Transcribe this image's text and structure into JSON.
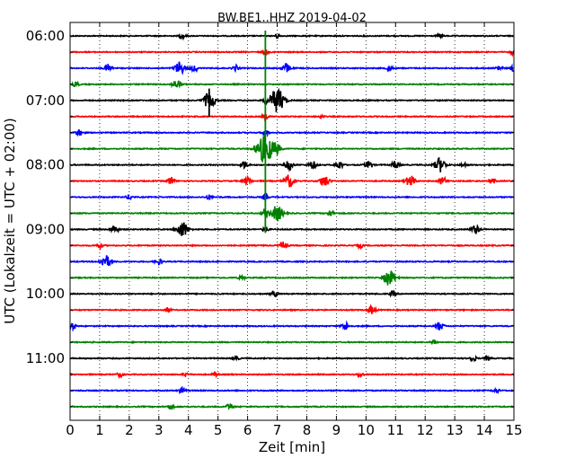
{
  "chart_data": {
    "type": "line",
    "title": "BW.BE1..HHZ 2019-04-02",
    "xlabel": "Zeit  [min]",
    "ylabel": "UTC (Lokalzeit = UTC + 02:00)",
    "xlim": [
      0,
      15
    ],
    "x_ticks": [
      0,
      1,
      2,
      3,
      4,
      5,
      6,
      7,
      8,
      9,
      10,
      11,
      12,
      13,
      14,
      15
    ],
    "grid": "vertical dotted",
    "row_interval_min": 15,
    "colors": [
      "#000000",
      "#ff0000",
      "#0000ff",
      "#008000"
    ],
    "y_ticks": [
      "06:00",
      "07:00",
      "08:00",
      "09:00",
      "10:00",
      "11:00"
    ],
    "rows": [
      {
        "time": "06:00",
        "bursts": [
          [
            3.8,
            0.3
          ],
          [
            7.0,
            0.25
          ],
          [
            12.5,
            0.25
          ]
        ]
      },
      {
        "time": "06:15",
        "bursts": [
          [
            6.6,
            0.3
          ],
          [
            15.0,
            0.4
          ]
        ]
      },
      {
        "time": "06:30",
        "bursts": [
          [
            1.3,
            0.5
          ],
          [
            3.7,
            0.8
          ],
          [
            4.2,
            0.4
          ],
          [
            5.6,
            0.35
          ],
          [
            7.3,
            0.6
          ],
          [
            10.8,
            0.3
          ],
          [
            14.5,
            0.35
          ],
          [
            15.0,
            0.4
          ]
        ]
      },
      {
        "time": "06:45",
        "bursts": [
          [
            0.2,
            0.3
          ],
          [
            3.6,
            0.6
          ]
        ]
      },
      {
        "time": "07:00",
        "bursts": [
          [
            4.7,
            1.0
          ],
          [
            6.6,
            0.3
          ],
          [
            7.0,
            1.5
          ]
        ]
      },
      {
        "time": "07:15",
        "bursts": [
          [
            6.6,
            0.3
          ],
          [
            8.5,
            0.2
          ]
        ]
      },
      {
        "time": "07:30",
        "bursts": [
          [
            0.3,
            0.4
          ],
          [
            6.6,
            0.35
          ]
        ]
      },
      {
        "time": "07:45",
        "bursts": [
          [
            6.6,
            1.8
          ],
          [
            7.0,
            0.5
          ]
        ]
      },
      {
        "time": "08:00",
        "bursts": [
          [
            5.9,
            0.45
          ],
          [
            7.4,
            0.6
          ],
          [
            8.2,
            0.5
          ],
          [
            9.1,
            0.5
          ],
          [
            10.1,
            0.5
          ],
          [
            11.0,
            0.5
          ],
          [
            12.5,
            0.9
          ],
          [
            13.3,
            0.3
          ]
        ]
      },
      {
        "time": "08:15",
        "bursts": [
          [
            3.4,
            0.5
          ],
          [
            6.0,
            0.5
          ],
          [
            7.4,
            0.8
          ],
          [
            8.6,
            0.7
          ],
          [
            11.5,
            0.7
          ],
          [
            12.6,
            0.5
          ],
          [
            14.3,
            0.3
          ]
        ]
      },
      {
        "time": "08:30",
        "bursts": [
          [
            2.0,
            0.3
          ],
          [
            4.7,
            0.3
          ],
          [
            6.6,
            0.3
          ]
        ]
      },
      {
        "time": "08:45",
        "bursts": [
          [
            6.6,
            0.5
          ],
          [
            7.0,
            1.0
          ],
          [
            8.8,
            0.4
          ]
        ]
      },
      {
        "time": "09:00",
        "bursts": [
          [
            1.5,
            0.5
          ],
          [
            3.8,
            1.0
          ],
          [
            6.6,
            0.3
          ],
          [
            13.7,
            0.6
          ]
        ]
      },
      {
        "time": "09:15",
        "bursts": [
          [
            1.0,
            0.3
          ],
          [
            7.2,
            0.5
          ],
          [
            9.8,
            0.3
          ]
        ]
      },
      {
        "time": "09:30",
        "bursts": [
          [
            1.2,
            0.8
          ],
          [
            3.0,
            0.4
          ]
        ]
      },
      {
        "time": "09:45",
        "bursts": [
          [
            5.8,
            0.3
          ],
          [
            10.8,
            1.0
          ]
        ]
      },
      {
        "time": "10:00",
        "bursts": [
          [
            6.9,
            0.35
          ],
          [
            10.9,
            0.3
          ]
        ]
      },
      {
        "time": "10:15",
        "bursts": [
          [
            3.3,
            0.3
          ],
          [
            10.2,
            0.5
          ]
        ]
      },
      {
        "time": "10:30",
        "bursts": [
          [
            0.1,
            0.4
          ],
          [
            9.3,
            0.5
          ],
          [
            12.5,
            0.5
          ]
        ]
      },
      {
        "time": "10:45",
        "bursts": [
          [
            12.3,
            0.3
          ]
        ]
      },
      {
        "time": "11:00",
        "bursts": [
          [
            5.6,
            0.3
          ],
          [
            13.6,
            0.4
          ],
          [
            14.1,
            0.25
          ]
        ]
      },
      {
        "time": "11:15",
        "bursts": [
          [
            1.7,
            0.3
          ],
          [
            3.9,
            0.25
          ],
          [
            4.9,
            0.25
          ],
          [
            9.8,
            0.3
          ]
        ]
      },
      {
        "time": "11:30",
        "bursts": [
          [
            3.8,
            0.35
          ],
          [
            14.4,
            0.3
          ]
        ]
      },
      {
        "time": "11:45",
        "bursts": [
          [
            3.4,
            0.3
          ],
          [
            5.4,
            0.4
          ]
        ]
      }
    ]
  }
}
